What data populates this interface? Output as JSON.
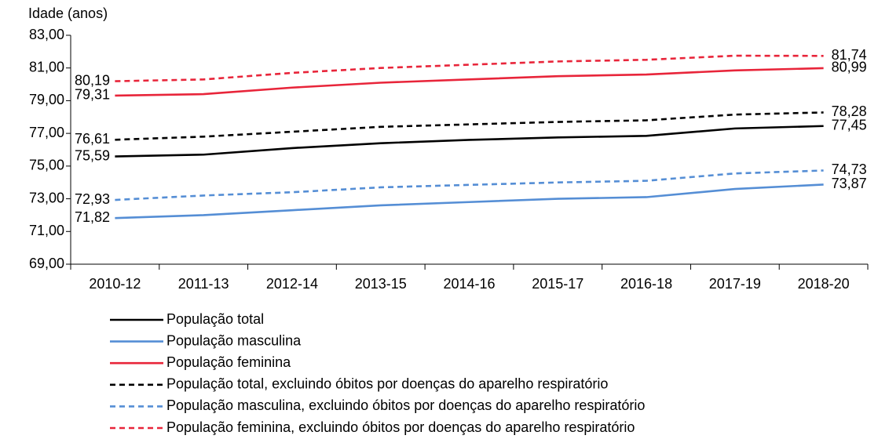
{
  "chart_data": {
    "type": "line",
    "ylabel": "Idade (anos)",
    "categories": [
      "2010-12",
      "2011-13",
      "2012-14",
      "2013-15",
      "2014-16",
      "2015-17",
      "2016-18",
      "2017-19",
      "2018-20"
    ],
    "ylim": [
      69,
      83
    ],
    "yticks": [
      {
        "value": 69,
        "label": "69,00"
      },
      {
        "value": 71,
        "label": "71,00"
      },
      {
        "value": 73,
        "label": "73,00"
      },
      {
        "value": 75,
        "label": "75,00"
      },
      {
        "value": 77,
        "label": "77,00"
      },
      {
        "value": 79,
        "label": "79,00"
      },
      {
        "value": 81,
        "label": "81,00"
      },
      {
        "value": 83,
        "label": "83,00"
      }
    ],
    "grid": false,
    "legend": "bottom",
    "series": [
      {
        "name": "População total",
        "color": "#000000",
        "dashed": false,
        "values": [
          75.59,
          75.7,
          76.1,
          76.4,
          76.6,
          76.75,
          76.85,
          77.3,
          77.45
        ],
        "value_labels": [
          "75,59",
          null,
          null,
          null,
          null,
          null,
          null,
          null,
          "77,45"
        ]
      },
      {
        "name": "População masculina",
        "color": "#558ed5",
        "dashed": false,
        "values": [
          71.82,
          72.0,
          72.3,
          72.6,
          72.8,
          73.0,
          73.1,
          73.6,
          73.87
        ],
        "value_labels": [
          "71,82",
          null,
          null,
          null,
          null,
          null,
          null,
          null,
          "73,87"
        ]
      },
      {
        "name": "População feminina",
        "color": "#e8253a",
        "dashed": false,
        "values": [
          79.31,
          79.4,
          79.8,
          80.1,
          80.3,
          80.5,
          80.6,
          80.85,
          80.99
        ],
        "value_labels": [
          "79,31",
          null,
          null,
          null,
          null,
          null,
          null,
          null,
          "80,99"
        ]
      },
      {
        "name": "População total, excluindo óbitos por doenças do aparelho respiratório",
        "color": "#000000",
        "dashed": true,
        "values": [
          76.61,
          76.8,
          77.1,
          77.4,
          77.55,
          77.7,
          77.8,
          78.15,
          78.28
        ],
        "value_labels": [
          "76,61",
          null,
          null,
          null,
          null,
          null,
          null,
          null,
          "78,28"
        ]
      },
      {
        "name": "População masculina, excluindo óbitos por doenças do aparelho respiratório",
        "color": "#558ed5",
        "dashed": true,
        "values": [
          72.93,
          73.2,
          73.4,
          73.7,
          73.85,
          74.0,
          74.1,
          74.55,
          74.73
        ],
        "value_labels": [
          "72,93",
          null,
          null,
          null,
          null,
          null,
          null,
          null,
          "74,73"
        ]
      },
      {
        "name": "População feminina, excluindo óbitos por doenças do aparelho respiratório",
        "color": "#e8253a",
        "dashed": true,
        "values": [
          80.19,
          80.3,
          80.7,
          81.0,
          81.2,
          81.4,
          81.5,
          81.75,
          81.74
        ],
        "value_labels": [
          "80,19",
          null,
          null,
          null,
          null,
          null,
          null,
          null,
          "81,74"
        ]
      }
    ]
  }
}
